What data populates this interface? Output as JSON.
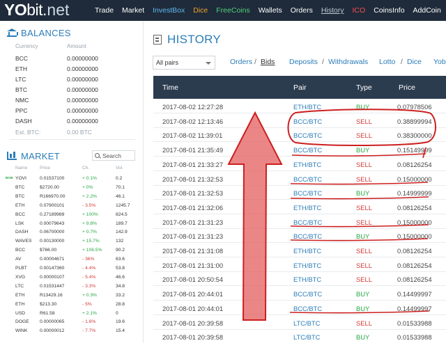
{
  "logo": {
    "yo": "YO",
    "bit": "bit",
    "dot": ".",
    "net": "net"
  },
  "nav": [
    {
      "label": "Trade",
      "color": "#ffffff"
    },
    {
      "label": "Market",
      "color": "#ffffff"
    },
    {
      "label": "InvestBox",
      "color": "#5fb8ef"
    },
    {
      "label": "Dice",
      "color": "#f0a32f"
    },
    {
      "label": "FreeCoins",
      "color": "#4fd07a"
    },
    {
      "label": "Wallets",
      "color": "#ffffff"
    },
    {
      "label": "Orders",
      "color": "#ffffff"
    },
    {
      "label": "History",
      "color": "#c0c9d3"
    },
    {
      "label": "ICO",
      "color": "#ff4d4d"
    },
    {
      "label": "CoinsInfo",
      "color": "#ffffff"
    },
    {
      "label": "AddCoin",
      "color": "#ffffff"
    }
  ],
  "balances": {
    "title": "BALANCES",
    "col_currency": "Currency",
    "col_amount": "Amount",
    "rows": [
      {
        "cur": "BCC",
        "amt": "0.00000000"
      },
      {
        "cur": "ETH",
        "amt": "0.00000000"
      },
      {
        "cur": "LTC",
        "amt": "0.00000000"
      },
      {
        "cur": "BTC",
        "amt": "0.00000000"
      },
      {
        "cur": "NMC",
        "amt": "0.00000000"
      },
      {
        "cur": "PPC",
        "amt": "0.00000000"
      },
      {
        "cur": "DASH",
        "amt": "0.00000000"
      }
    ],
    "est_label": "Est. BTC:",
    "est_value": "0.00 BTC"
  },
  "market": {
    "title": "MARKET",
    "search_placeholder": "Search",
    "cols": {
      "name": "Name",
      "price": "Price",
      "ch": "Ch.",
      "vol": "Vol."
    },
    "badge": "BOM",
    "rows": [
      {
        "name": "YOVI",
        "price": "0.01537100",
        "ch": "+ 0.1%",
        "dir": "pos",
        "vol": "0.2"
      },
      {
        "name": "BTC",
        "price": "$2720.00",
        "ch": "+ 0%",
        "dir": "pos",
        "vol": "70.1"
      },
      {
        "name": "BTC",
        "price": "R166970.00",
        "ch": "+ 2.2%",
        "dir": "pos",
        "vol": "46.1"
      },
      {
        "name": "ETH",
        "price": "0.07900101",
        "ch": "- 3.5%",
        "dir": "neg",
        "vol": "1245.7"
      },
      {
        "name": "BCC",
        "price": "0.27189989",
        "ch": "+ 100%",
        "dir": "pos",
        "vol": "824.5"
      },
      {
        "name": "LSK",
        "price": "0.00079643",
        "ch": "+ 9.8%",
        "dir": "pos",
        "vol": "189.7"
      },
      {
        "name": "DASH",
        "price": "0.06700000",
        "ch": "+ 0.7%",
        "dir": "pos",
        "vol": "142.9"
      },
      {
        "name": "WAVES",
        "price": "0.00130000",
        "ch": "+ 15.7%",
        "dir": "pos",
        "vol": "132"
      },
      {
        "name": "BCC",
        "price": "$766.00",
        "ch": "+ 106.5%",
        "dir": "pos",
        "vol": "90.2"
      },
      {
        "name": "AV",
        "price": "0.00004671",
        "ch": "- 36%",
        "dir": "neg",
        "vol": "63.6"
      },
      {
        "name": "PLBT",
        "price": "0.00147360",
        "ch": "- 4.4%",
        "dir": "neg",
        "vol": "53.8"
      },
      {
        "name": "XVG",
        "price": "0.00000107",
        "ch": "- 5.4%",
        "dir": "neg",
        "vol": "46.6"
      },
      {
        "name": "LTC",
        "price": "0.01531447",
        "ch": "- 3.3%",
        "dir": "neg",
        "vol": "34.8"
      },
      {
        "name": "ETH",
        "price": "R13429.16",
        "ch": "+ 0.3%",
        "dir": "pos",
        "vol": "33.2"
      },
      {
        "name": "ETH",
        "price": "$213.30",
        "ch": "- 5%",
        "dir": "neg",
        "vol": "28.8"
      },
      {
        "name": "USD",
        "price": "R61.58",
        "ch": "+ 2.1%",
        "dir": "pos",
        "vol": "0"
      },
      {
        "name": "DOGE",
        "price": "0.00000065",
        "ch": "- 1.6%",
        "dir": "neg",
        "vol": "19.6"
      },
      {
        "name": "WINK",
        "price": "0.00000012",
        "ch": "- 7.7%",
        "dir": "neg",
        "vol": "15.4"
      }
    ]
  },
  "main": {
    "title": "HISTORY",
    "pair_select": "All pairs",
    "links": {
      "orders": "Orders",
      "sep1": "/",
      "bids": "Bids",
      "deposits": "Deposits",
      "sep2": "/",
      "withdrawals": "Withdrawals",
      "lotto": "Lotto",
      "sep3": "/",
      "dice": "Dice",
      "yobi": "Yobi"
    },
    "table": {
      "headers": {
        "time": "Time",
        "pair": "Pair",
        "type": "Type",
        "price": "Price"
      },
      "rows": [
        {
          "time": "2017-08-02 12:27:28",
          "pair": "ETH/BTC",
          "type": "BUY",
          "price": "0.07978506"
        },
        {
          "time": "2017-08-02 12:13:46",
          "pair": "BCC/BTC",
          "type": "SELL",
          "price": "0.38899994"
        },
        {
          "time": "2017-08-02 11:39:01",
          "pair": "BCC/BTC",
          "type": "SELL",
          "price": "0.38300000"
        },
        {
          "time": "2017-08-01 21:35:49",
          "pair": "BCC/BTC",
          "type": "BUY",
          "price": "0.15149999"
        },
        {
          "time": "2017-08-01 21:33:27",
          "pair": "ETH/BTC",
          "type": "SELL",
          "price": "0.08126254"
        },
        {
          "time": "2017-08-01 21:32:53",
          "pair": "BCC/BTC",
          "type": "SELL",
          "price": "0.15000000"
        },
        {
          "time": "2017-08-01 21:32:53",
          "pair": "BCC/BTC",
          "type": "BUY",
          "price": "0.14999999"
        },
        {
          "time": "2017-08-01 21:32:06",
          "pair": "ETH/BTC",
          "type": "SELL",
          "price": "0.08126254"
        },
        {
          "time": "2017-08-01 21:31:23",
          "pair": "BCC/BTC",
          "type": "SELL",
          "price": "0.15000000"
        },
        {
          "time": "2017-08-01 21:31:23",
          "pair": "BCC/BTC",
          "type": "BUY",
          "price": "0.15000000"
        },
        {
          "time": "2017-08-01 21:31:08",
          "pair": "ETH/BTC",
          "type": "SELL",
          "price": "0.08126254"
        },
        {
          "time": "2017-08-01 21:31:00",
          "pair": "ETH/BTC",
          "type": "SELL",
          "price": "0.08126254"
        },
        {
          "time": "2017-08-01 20:50:54",
          "pair": "ETH/BTC",
          "type": "SELL",
          "price": "0.08126254"
        },
        {
          "time": "2017-08-01 20:44:01",
          "pair": "BCC/BTC",
          "type": "BUY",
          "price": "0.14499997"
        },
        {
          "time": "2017-08-01 20:44:01",
          "pair": "BCC/BTC",
          "type": "BUY",
          "price": "0.14499997"
        },
        {
          "time": "2017-08-01 20:39:58",
          "pair": "LTC/BTC",
          "type": "SELL",
          "price": "0.01533988"
        },
        {
          "time": "2017-08-01 20:39:58",
          "pair": "LTC/BTC",
          "type": "BUY",
          "price": "0.01533988"
        }
      ]
    }
  },
  "colors": {
    "nav_bg": "#1f2b3a",
    "accent": "#2b7db8",
    "table_header": "#2c3c4f",
    "buy": "#27a844",
    "sell": "#d23b3b",
    "annotation": "#cc1f1f"
  }
}
